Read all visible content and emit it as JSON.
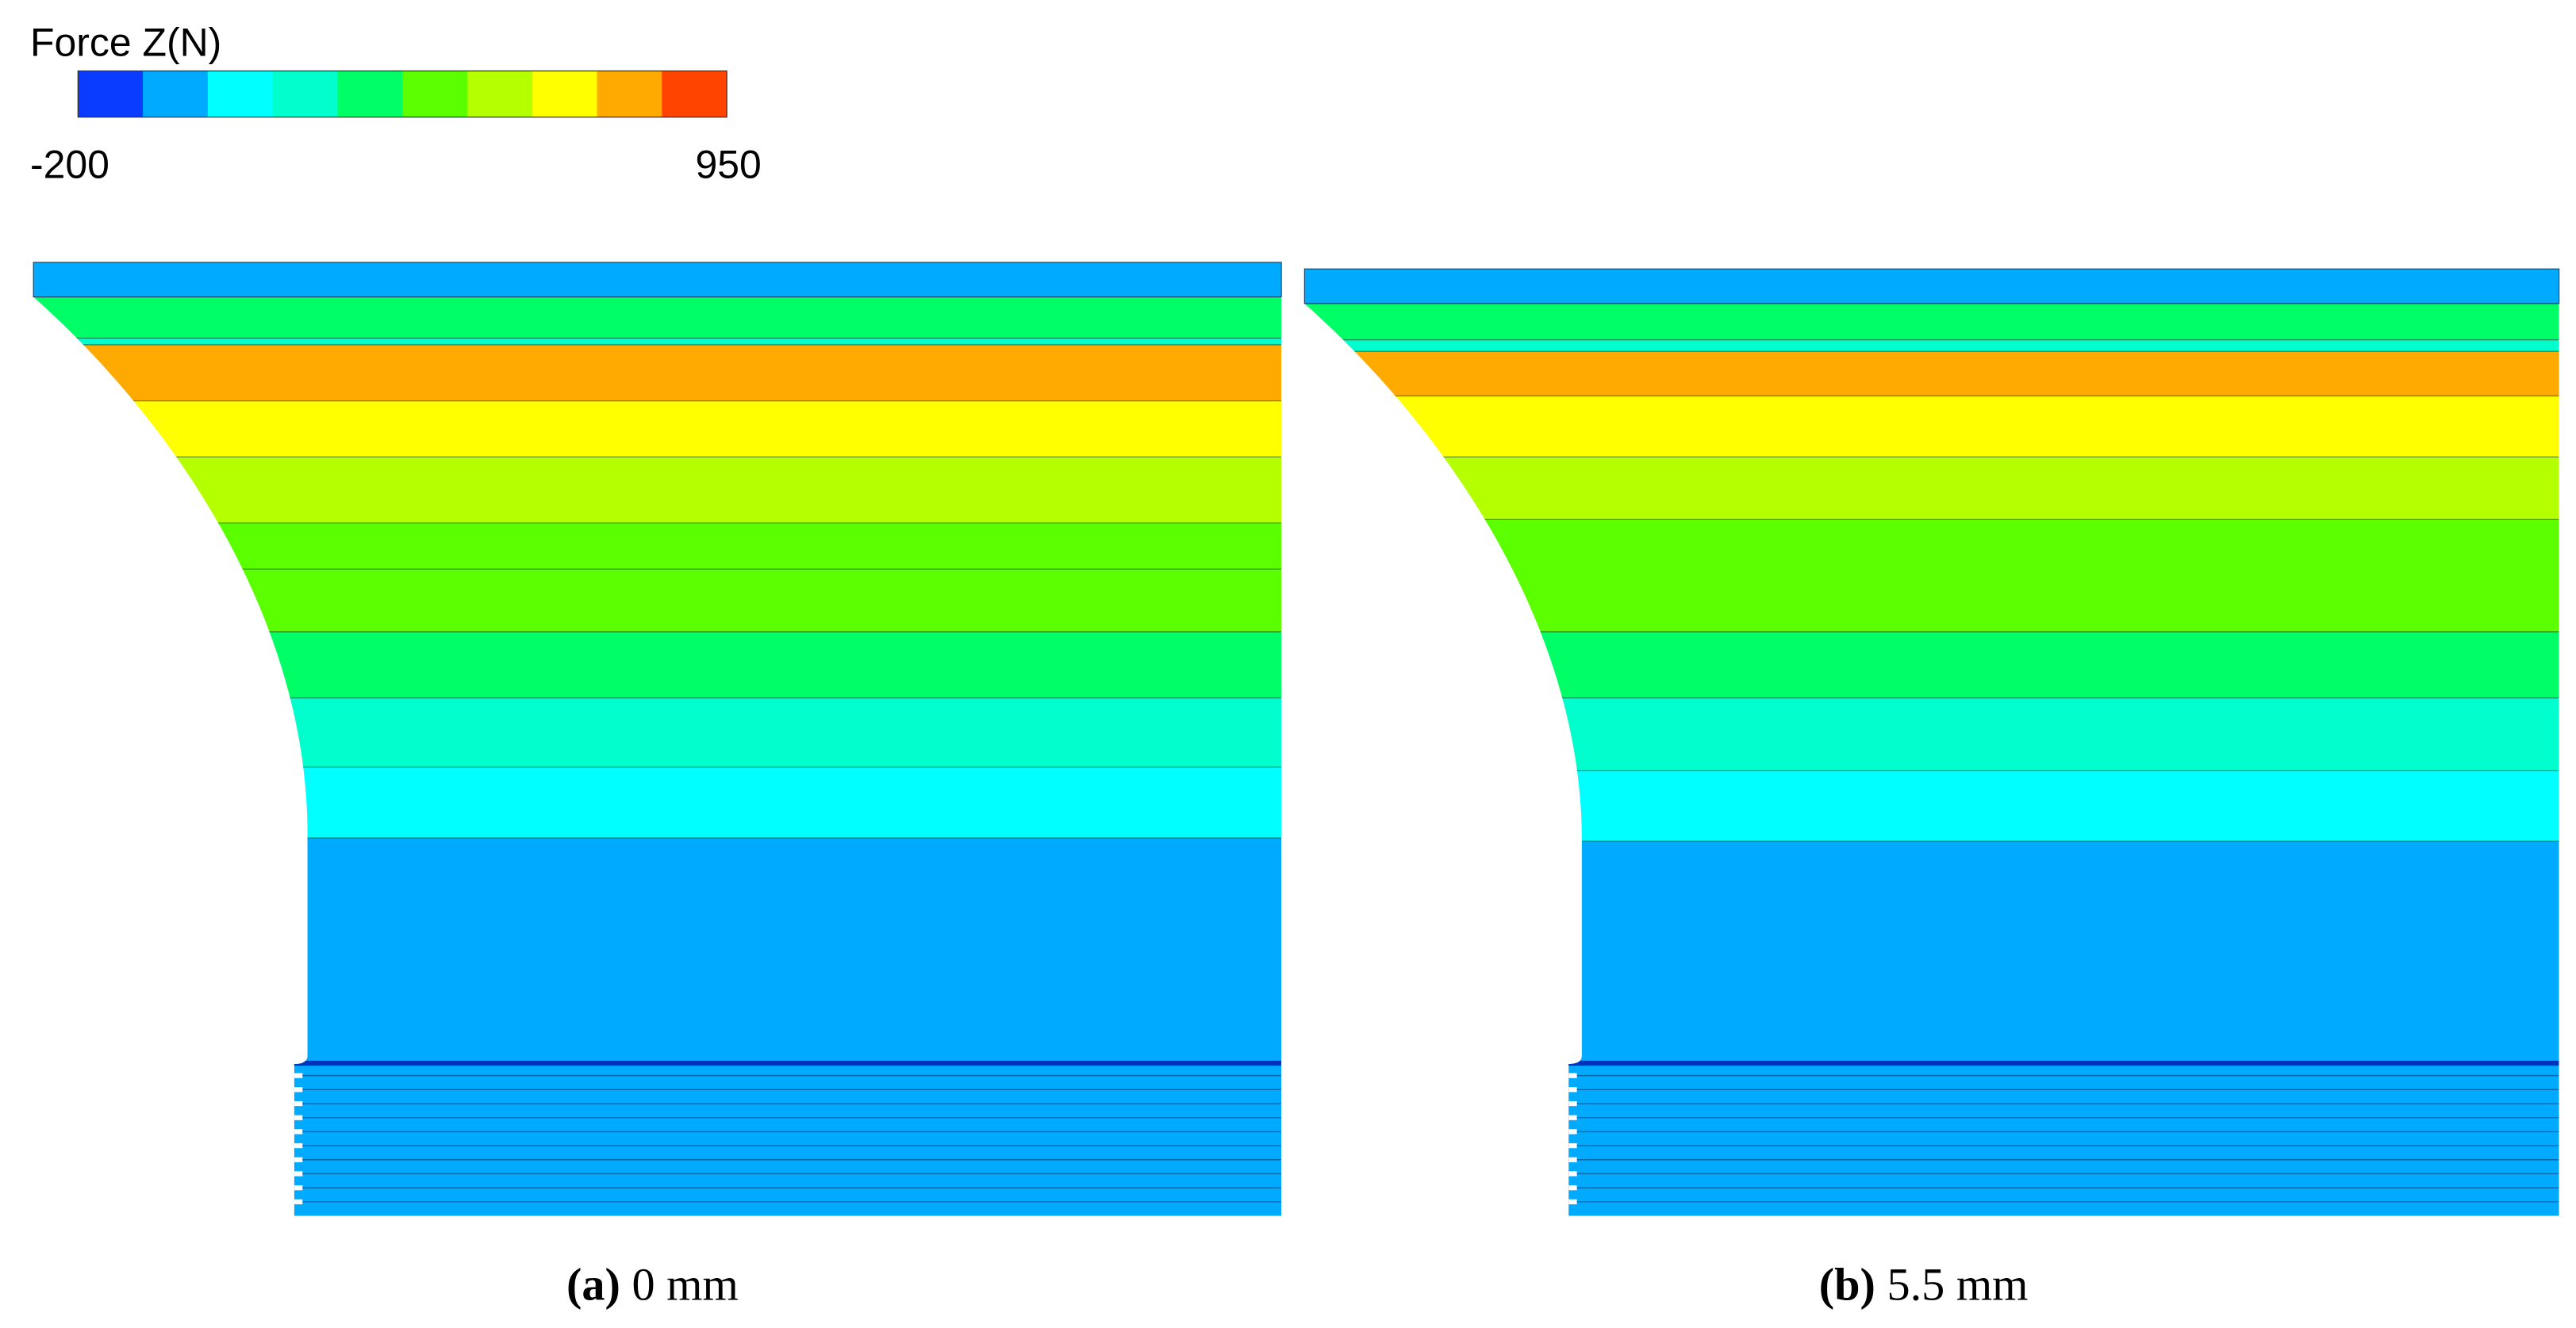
{
  "legend": {
    "title": "Force Z(N)",
    "min": -200,
    "max": 950,
    "colors": [
      "#0a3cff",
      "#00aaff",
      "#00ffff",
      "#00ffcc",
      "#00ff66",
      "#5cff00",
      "#b4ff00",
      "#ffff00",
      "#ffaa00",
      "#ff4400"
    ]
  },
  "panels": [
    {
      "label": "(a)",
      "caption": "0 mm"
    },
    {
      "label": "(b)",
      "caption": "5.5 mm"
    }
  ]
}
